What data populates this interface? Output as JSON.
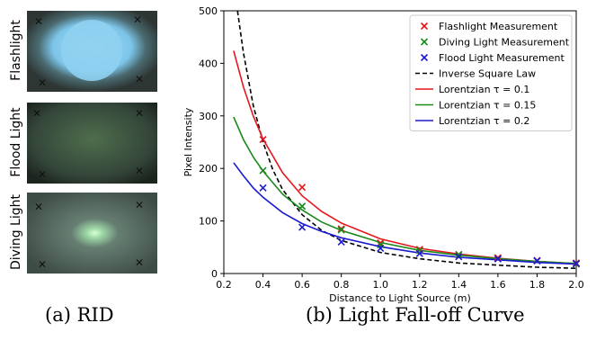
{
  "panels": {
    "a": {
      "caption": "(a) RID"
    },
    "b": {
      "caption": "(b) Light Fall-off Curve"
    }
  },
  "photos": [
    {
      "label": "Flashlight",
      "glow_color": "#8fd0f0",
      "bg": "#3a4440"
    },
    {
      "label": "Flood Light",
      "glow_color": "#4a6a48",
      "bg": "#2a3a2a"
    },
    {
      "label": "Diving Light",
      "glow_color": "#c8f0c8",
      "bg": "#4a5e56"
    }
  ],
  "chart_data": {
    "type": "scatter",
    "xlabel": "Distance to Light Source (m)",
    "ylabel": "Pixel Intensity",
    "xlim": [
      0.2,
      2.0
    ],
    "ylim": [
      0,
      500
    ],
    "xticks": [
      "0.2",
      "0.4",
      "0.6",
      "0.8",
      "1.0",
      "1.2",
      "1.4",
      "1.6",
      "1.8",
      "2.0"
    ],
    "yticks": [
      "0",
      "100",
      "200",
      "300",
      "400",
      "500"
    ],
    "legend_position": "top-right",
    "measurements": [
      {
        "name": "Flashlight Measurement",
        "color": "#e8141c",
        "x": [
          0.4,
          0.6,
          0.8,
          1.0,
          1.2,
          1.4,
          1.6,
          1.8,
          2.0
        ],
        "y": [
          255,
          164,
          85,
          58,
          46,
          36,
          30,
          25,
          20
        ]
      },
      {
        "name": "Diving Light Measurement",
        "color": "#1a8a1a",
        "x": [
          0.4,
          0.6,
          0.8,
          1.0,
          1.2,
          1.4,
          1.6,
          1.8,
          2.0
        ],
        "y": [
          196,
          128,
          83,
          55,
          44,
          36,
          28,
          24,
          18
        ]
      },
      {
        "name": "Flood Light Measurement",
        "color": "#1a1ad0",
        "x": [
          0.4,
          0.6,
          0.8,
          1.0,
          1.2,
          1.4,
          1.6,
          1.8,
          2.0
        ],
        "y": [
          163,
          88,
          60,
          48,
          38,
          32,
          28,
          24,
          19
        ]
      }
    ],
    "curves": [
      {
        "name": "Inverse Square Law",
        "color": "#000000",
        "dash": true,
        "x": [
          0.27,
          0.3,
          0.35,
          0.4,
          0.45,
          0.5,
          0.6,
          0.7,
          0.8,
          1.0,
          1.2,
          1.4,
          1.6,
          1.8,
          2.0
        ],
        "y": [
          500,
          420,
          320,
          250,
          198,
          160,
          112,
          82,
          63,
          40,
          28,
          20,
          16,
          12,
          10
        ]
      },
      {
        "name": "Lorentzian τ = 0.1",
        "color": "#e8141c",
        "dash": false,
        "x": [
          0.25,
          0.3,
          0.35,
          0.4,
          0.5,
          0.6,
          0.7,
          0.8,
          1.0,
          1.2,
          1.4,
          1.6,
          1.8,
          2.0
        ],
        "y": [
          424,
          355,
          300,
          256,
          192,
          148,
          118,
          96,
          66,
          48,
          37,
          29,
          23,
          19
        ]
      },
      {
        "name": "Lorentzian τ = 0.15",
        "color": "#1a8a1a",
        "dash": false,
        "x": [
          0.25,
          0.3,
          0.35,
          0.4,
          0.5,
          0.6,
          0.7,
          0.8,
          1.0,
          1.2,
          1.4,
          1.6,
          1.8,
          2.0
        ],
        "y": [
          298,
          255,
          222,
          195,
          151,
          121,
          98,
          82,
          59,
          44,
          35,
          28,
          23,
          19
        ]
      },
      {
        "name": "Lorentzian τ = 0.2",
        "color": "#1a1ad0",
        "dash": false,
        "x": [
          0.25,
          0.3,
          0.35,
          0.4,
          0.5,
          0.6,
          0.7,
          0.8,
          1.0,
          1.2,
          1.4,
          1.6,
          1.8,
          2.0
        ],
        "y": [
          211,
          186,
          163,
          145,
          116,
          95,
          80,
          68,
          51,
          39,
          31,
          26,
          21,
          18
        ]
      }
    ]
  }
}
